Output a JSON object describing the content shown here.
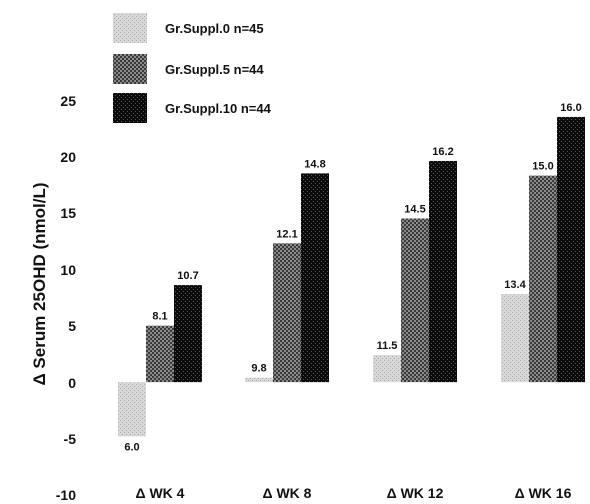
{
  "chart_data": {
    "type": "bar",
    "title": "",
    "xlabel": "",
    "ylabel": "Δ Serum 25OHD (nmol/L)",
    "ylim": [
      -10,
      25
    ],
    "yticks": [
      "25",
      "20",
      "15",
      "10",
      "5",
      "0",
      "-5",
      "-10"
    ],
    "grid": false,
    "legend_position": "top-left",
    "categories": [
      "Δ WK 4",
      "Δ WK 8",
      "Δ WK 12",
      "Δ WK 16"
    ],
    "series": [
      {
        "name": "Gr.Suppl.0 n=45",
        "color": "#d0d0d0",
        "values": [
          -4.8,
          0.4,
          2.4,
          7.8
        ],
        "labels": [
          "6.0",
          "9.8",
          "11.5",
          "13.4"
        ]
      },
      {
        "name": "Gr.Suppl.5 n=44",
        "color": "#6a6a6a",
        "values": [
          5.0,
          12.3,
          14.5,
          18.3
        ],
        "labels": [
          "8.1",
          "12.1",
          "14.5",
          "15.0"
        ]
      },
      {
        "name": "Gr.Suppl.10 n=44",
        "color": "#111111",
        "values": [
          8.6,
          18.5,
          19.6,
          23.5
        ],
        "labels": [
          "10.7",
          "14.8",
          "16.2",
          "16.0"
        ]
      }
    ]
  }
}
